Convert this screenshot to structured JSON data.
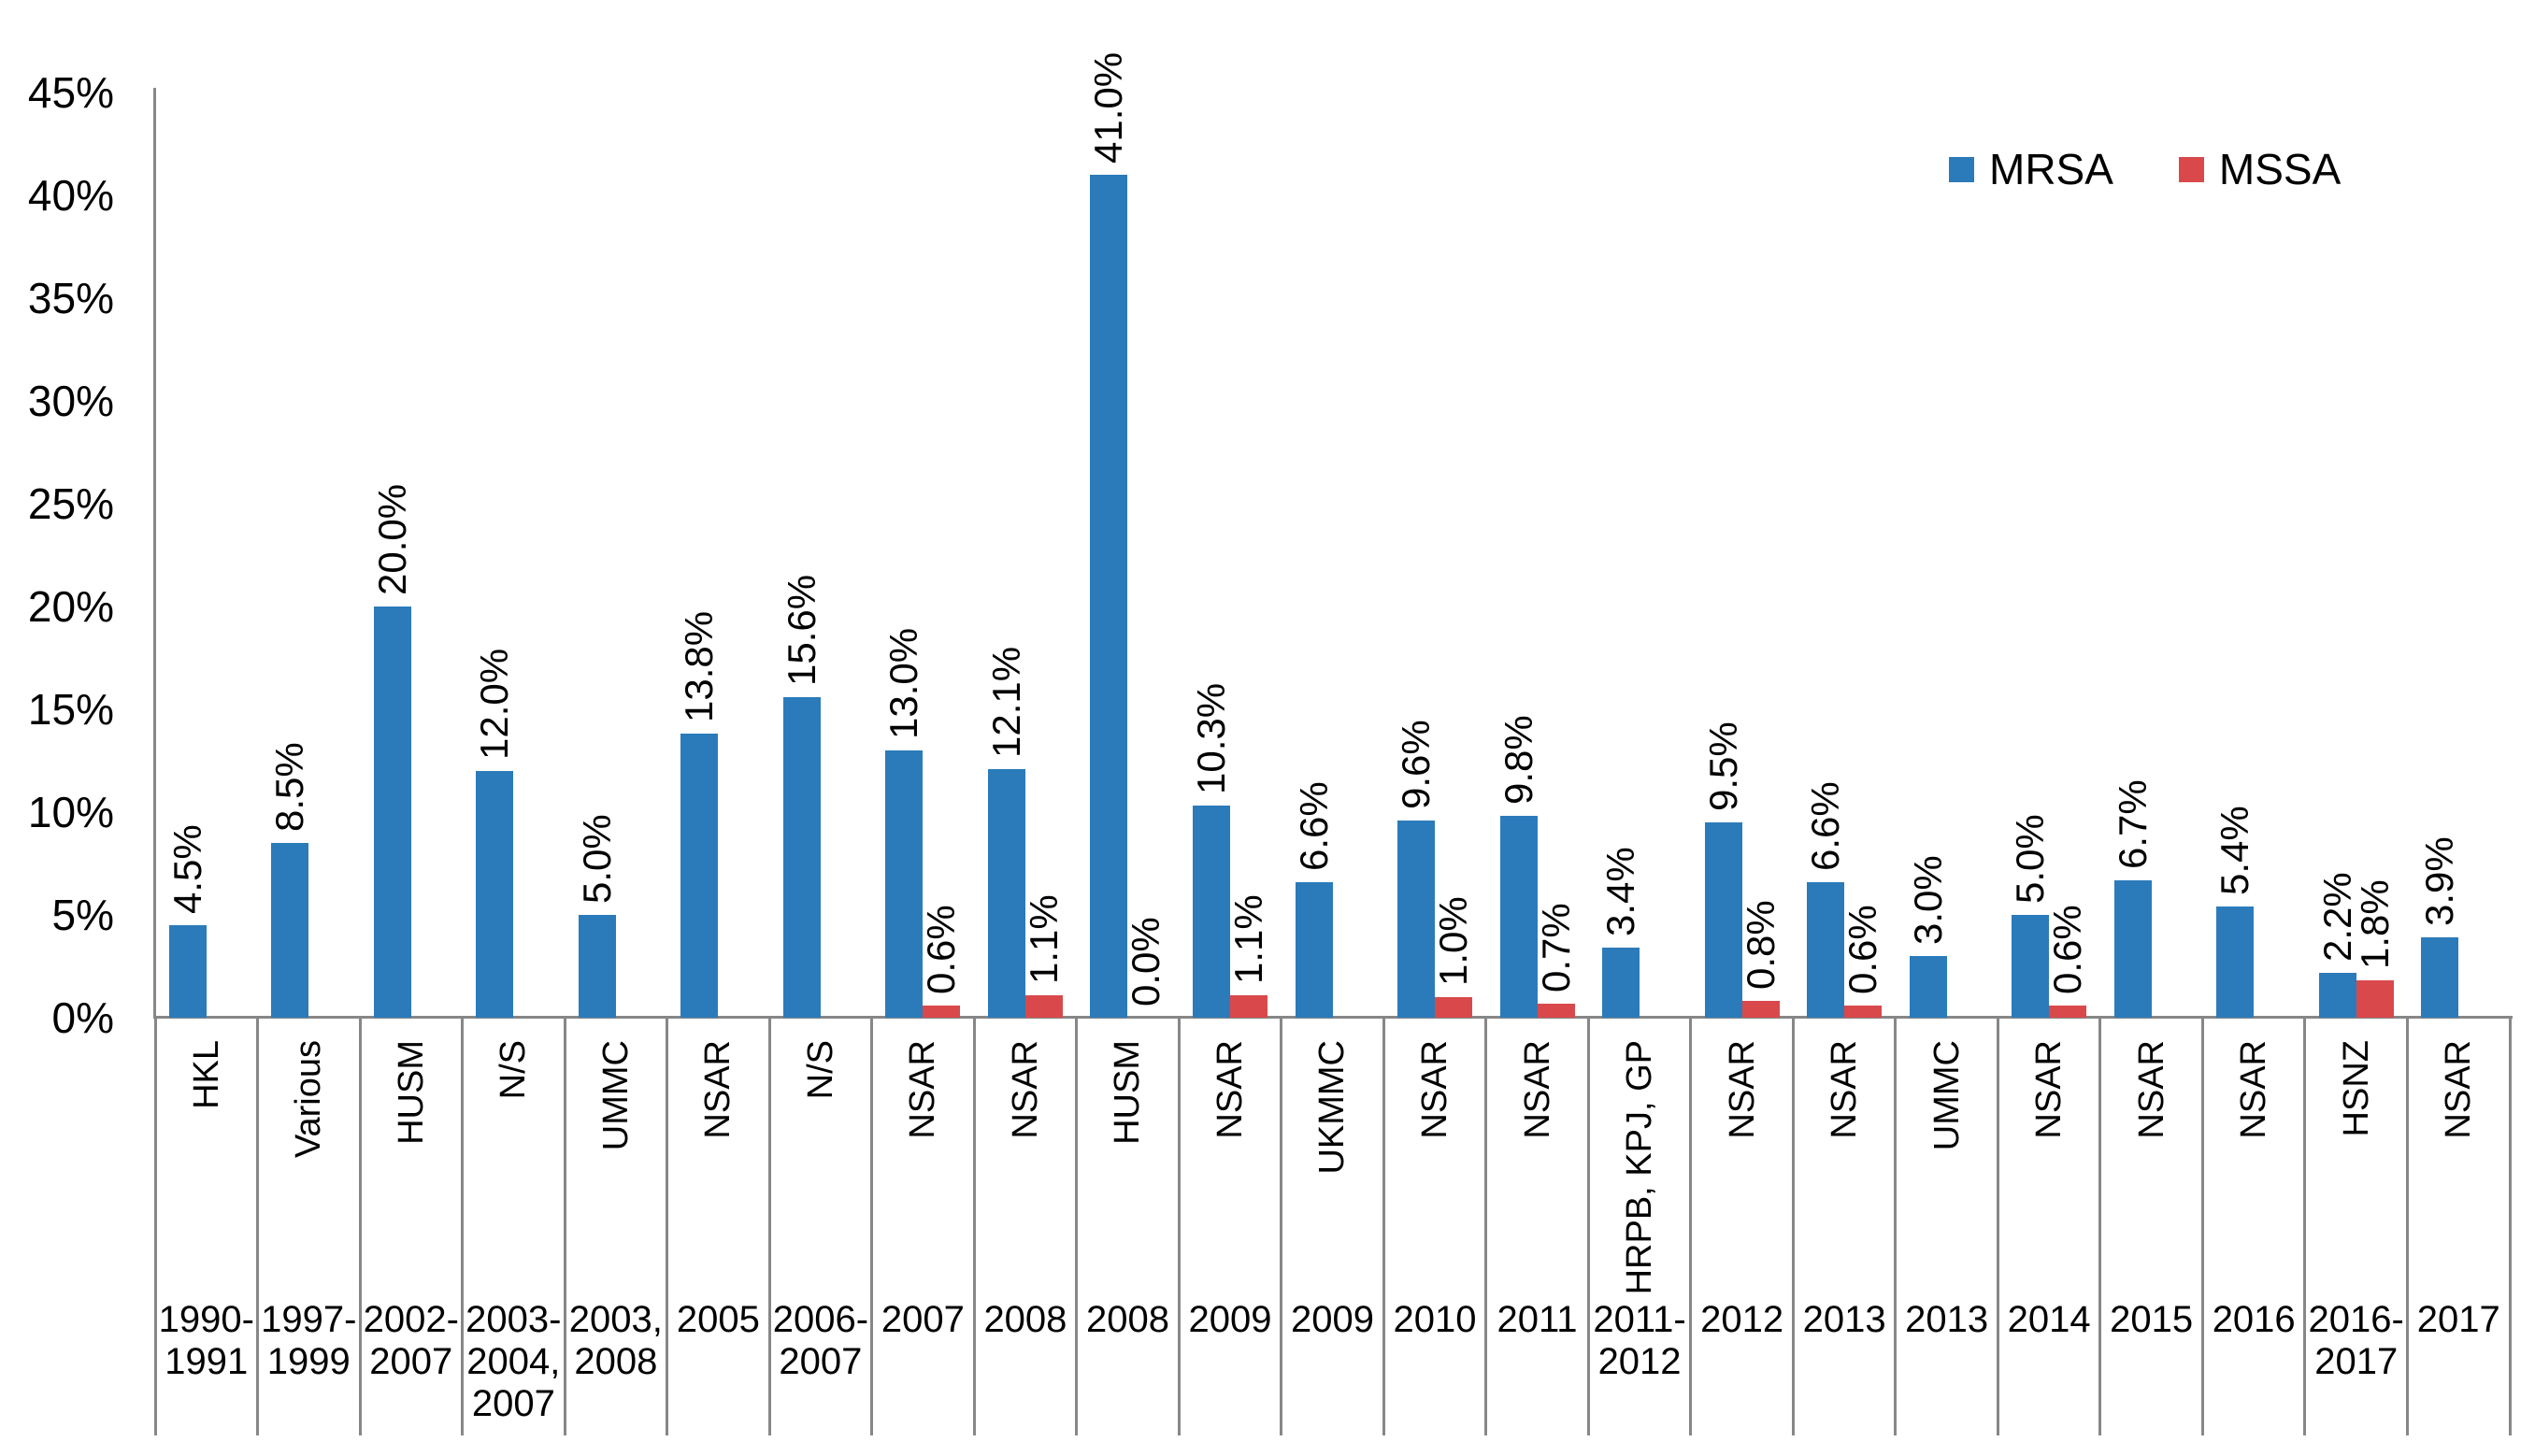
{
  "chart_data": {
    "type": "bar",
    "title": "",
    "xlabel": "",
    "ylabel": "",
    "grid": false,
    "legend_position": "top-right",
    "colors": {
      "mrsa_blue": "#2B7BBA",
      "mssa_red": "#D9494B",
      "axis_line": "#878787",
      "label_text": "#000000"
    },
    "y_axis": {
      "min": 0,
      "max": 45,
      "step": 5,
      "tick_labels": [
        "0%",
        "5%",
        "10%",
        "15%",
        "20%",
        "25%",
        "30%",
        "35%",
        "40%",
        "45%"
      ]
    },
    "series": [
      {
        "name": "MRSA",
        "color": "#2B7BBA"
      },
      {
        "name": "MSSA",
        "color": "#D9494B"
      }
    ],
    "categories": [
      {
        "source": "HKL",
        "years": [
          "1990-",
          "1991"
        ],
        "mrsa": 4.5,
        "mrsa_label": "4.5%",
        "mssa": null,
        "mssa_label": null
      },
      {
        "source": "Various",
        "years": [
          "1997-",
          "1999"
        ],
        "mrsa": 8.5,
        "mrsa_label": "8.5%",
        "mssa": null,
        "mssa_label": null
      },
      {
        "source": "HUSM",
        "years": [
          "2002-",
          "2007"
        ],
        "mrsa": 20.0,
        "mrsa_label": "20.0%",
        "mssa": null,
        "mssa_label": null
      },
      {
        "source": "N/S",
        "years": [
          "2003-",
          "2004,",
          "2007"
        ],
        "mrsa": 12.0,
        "mrsa_label": "12.0%",
        "mssa": null,
        "mssa_label": null
      },
      {
        "source": "UMMC",
        "years": [
          "2003,",
          "2008"
        ],
        "mrsa": 5.0,
        "mrsa_label": "5.0%",
        "mssa": null,
        "mssa_label": null
      },
      {
        "source": "NSAR",
        "years": [
          "2005"
        ],
        "mrsa": 13.8,
        "mrsa_label": "13.8%",
        "mssa": null,
        "mssa_label": null
      },
      {
        "source": "N/S",
        "years": [
          "2006-",
          "2007"
        ],
        "mrsa": 15.6,
        "mrsa_label": "15.6%",
        "mssa": null,
        "mssa_label": null
      },
      {
        "source": "NSAR",
        "years": [
          "2007"
        ],
        "mrsa": 13.0,
        "mrsa_label": "13.0%",
        "mssa": 0.6,
        "mssa_label": "0.6%"
      },
      {
        "source": "NSAR",
        "years": [
          "2008"
        ],
        "mrsa": 12.1,
        "mrsa_label": "12.1%",
        "mssa": 1.1,
        "mssa_label": "1.1%"
      },
      {
        "source": "HUSM",
        "years": [
          "2008"
        ],
        "mrsa": 41.0,
        "mrsa_label": "41.0%",
        "mssa": 0.0,
        "mssa_label": "0.0%"
      },
      {
        "source": "NSAR",
        "years": [
          "2009"
        ],
        "mrsa": 10.3,
        "mrsa_label": "10.3%",
        "mssa": 1.1,
        "mssa_label": "1.1%"
      },
      {
        "source": "UKMMC",
        "years": [
          "2009"
        ],
        "mrsa": 6.6,
        "mrsa_label": "6.6%",
        "mssa": null,
        "mssa_label": null
      },
      {
        "source": "NSAR",
        "years": [
          "2010"
        ],
        "mrsa": 9.6,
        "mrsa_label": "9.6%",
        "mssa": 1.0,
        "mssa_label": "1.0%"
      },
      {
        "source": "NSAR",
        "years": [
          "2011"
        ],
        "mrsa": 9.8,
        "mrsa_label": "9.8%",
        "mssa": 0.7,
        "mssa_label": "0.7%"
      },
      {
        "source": "HRPB, KPJ, GP",
        "years": [
          "2011-",
          "2012"
        ],
        "mrsa": 3.4,
        "mrsa_label": "3.4%",
        "mssa": null,
        "mssa_label": null
      },
      {
        "source": "NSAR",
        "years": [
          "2012"
        ],
        "mrsa": 9.5,
        "mrsa_label": "9.5%",
        "mssa": 0.8,
        "mssa_label": "0.8%"
      },
      {
        "source": "NSAR",
        "years": [
          "2013"
        ],
        "mrsa": 6.6,
        "mrsa_label": "6.6%",
        "mssa": 0.6,
        "mssa_label": "0.6%"
      },
      {
        "source": "UMMC",
        "years": [
          "2013"
        ],
        "mrsa": 3.0,
        "mrsa_label": "3.0%",
        "mssa": null,
        "mssa_label": null
      },
      {
        "source": "NSAR",
        "years": [
          "2014"
        ],
        "mrsa": 5.0,
        "mrsa_label": "5.0%",
        "mssa": 0.6,
        "mssa_label": "0.6%"
      },
      {
        "source": "NSAR",
        "years": [
          "2015"
        ],
        "mrsa": 6.7,
        "mrsa_label": "6.7%",
        "mssa": null,
        "mssa_label": null
      },
      {
        "source": "NSAR",
        "years": [
          "2016"
        ],
        "mrsa": 5.4,
        "mrsa_label": "5.4%",
        "mssa": null,
        "mssa_label": null
      },
      {
        "source": "HSNZ",
        "years": [
          "2016-",
          "2017"
        ],
        "mrsa": 2.2,
        "mrsa_label": "2.2%",
        "mssa": 1.8,
        "mssa_label": "1.8%"
      },
      {
        "source": "NSAR",
        "years": [
          "2017"
        ],
        "mrsa": 3.9,
        "mrsa_label": "3.9%",
        "mssa": null,
        "mssa_label": null
      }
    ]
  }
}
